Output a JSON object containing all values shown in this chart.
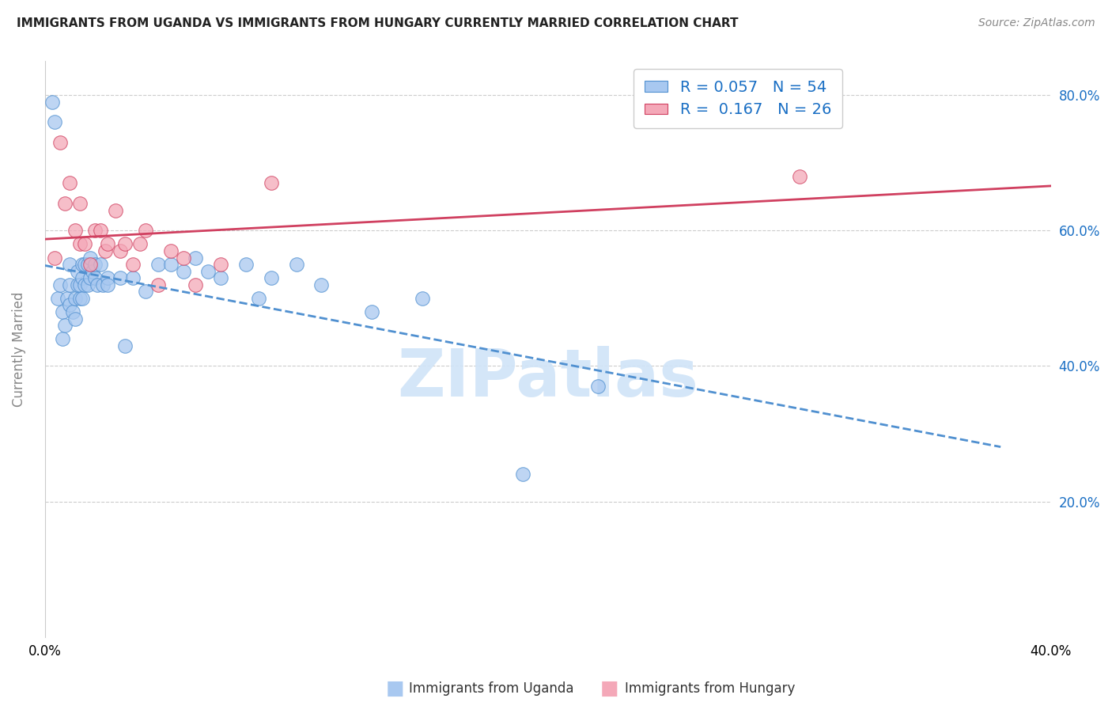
{
  "title": "IMMIGRANTS FROM UGANDA VS IMMIGRANTS FROM HUNGARY CURRENTLY MARRIED CORRELATION CHART",
  "source": "Source: ZipAtlas.com",
  "ylabel": "Currently Married",
  "xlim": [
    0.0,
    0.4
  ],
  "ylim": [
    0.0,
    0.85
  ],
  "yticks": [
    0.2,
    0.4,
    0.6,
    0.8
  ],
  "ytick_labels": [
    "20.0%",
    "40.0%",
    "60.0%",
    "80.0%"
  ],
  "xticks": [
    0.0,
    0.05,
    0.1,
    0.15,
    0.2,
    0.25,
    0.3,
    0.35,
    0.4
  ],
  "xtick_labels": [
    "0.0%",
    "",
    "",
    "",
    "",
    "",
    "",
    "",
    "40.0%"
  ],
  "uganda_color": "#a8c8f0",
  "hungary_color": "#f4a8b8",
  "uganda_R": 0.057,
  "uganda_N": 54,
  "hungary_R": 0.167,
  "hungary_N": 26,
  "legend_color": "#1a6fc4",
  "trend_uganda_color": "#5090d0",
  "trend_hungary_color": "#d04060",
  "watermark_text": "ZIPatlas",
  "watermark_color": "#d0e4f8",
  "uganda_x": [
    0.003,
    0.004,
    0.005,
    0.006,
    0.007,
    0.007,
    0.008,
    0.009,
    0.01,
    0.01,
    0.01,
    0.011,
    0.012,
    0.012,
    0.013,
    0.013,
    0.014,
    0.014,
    0.015,
    0.015,
    0.015,
    0.016,
    0.016,
    0.017,
    0.017,
    0.018,
    0.018,
    0.019,
    0.02,
    0.02,
    0.021,
    0.022,
    0.023,
    0.025,
    0.025,
    0.03,
    0.032,
    0.035,
    0.04,
    0.045,
    0.05,
    0.055,
    0.06,
    0.065,
    0.07,
    0.08,
    0.085,
    0.09,
    0.1,
    0.11,
    0.13,
    0.15,
    0.19,
    0.22
  ],
  "uganda_y": [
    0.79,
    0.76,
    0.5,
    0.52,
    0.44,
    0.48,
    0.46,
    0.5,
    0.55,
    0.52,
    0.49,
    0.48,
    0.47,
    0.5,
    0.52,
    0.54,
    0.5,
    0.52,
    0.55,
    0.53,
    0.5,
    0.55,
    0.52,
    0.55,
    0.52,
    0.53,
    0.56,
    0.54,
    0.53,
    0.55,
    0.52,
    0.55,
    0.52,
    0.53,
    0.52,
    0.53,
    0.43,
    0.53,
    0.51,
    0.55,
    0.55,
    0.54,
    0.56,
    0.54,
    0.53,
    0.55,
    0.5,
    0.53,
    0.55,
    0.52,
    0.48,
    0.5,
    0.24,
    0.37
  ],
  "hungary_x": [
    0.004,
    0.006,
    0.008,
    0.01,
    0.012,
    0.014,
    0.014,
    0.016,
    0.018,
    0.02,
    0.022,
    0.024,
    0.025,
    0.028,
    0.03,
    0.032,
    0.035,
    0.038,
    0.04,
    0.045,
    0.05,
    0.055,
    0.06,
    0.07,
    0.09,
    0.3
  ],
  "hungary_y": [
    0.56,
    0.73,
    0.64,
    0.67,
    0.6,
    0.64,
    0.58,
    0.58,
    0.55,
    0.6,
    0.6,
    0.57,
    0.58,
    0.63,
    0.57,
    0.58,
    0.55,
    0.58,
    0.6,
    0.52,
    0.57,
    0.56,
    0.52,
    0.55,
    0.67,
    0.68
  ],
  "trend_uganda_start_x": 0.0,
  "trend_uganda_end_x": 0.38,
  "trend_hungary_start_x": 0.0,
  "trend_hungary_end_x": 0.4
}
